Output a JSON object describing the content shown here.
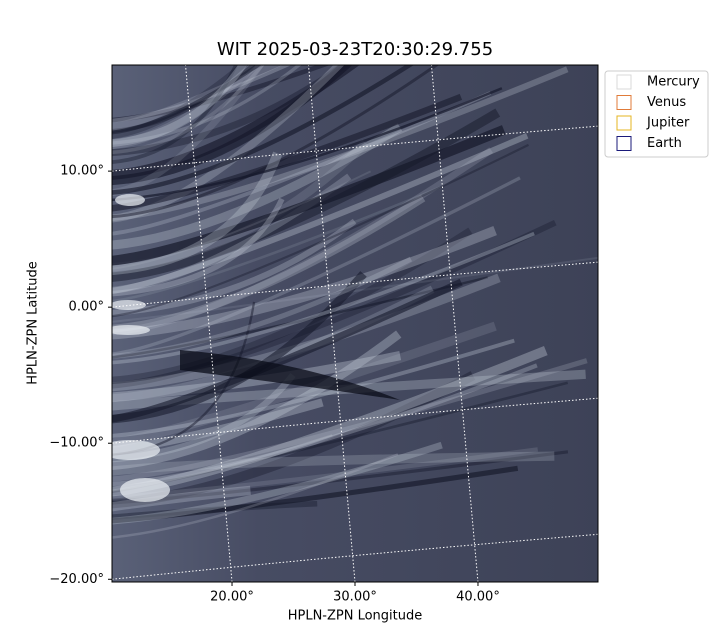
{
  "chart_data": {
    "type": "image",
    "title": "WIT 2025-03-23T20:30:29.755",
    "x_label": "HPLN-ZPN Longitude",
    "y_label": "HPLN-ZPN Latitude",
    "xlim": [
      10.24,
      49.76
    ],
    "ylim": [
      -20.2,
      17.8
    ],
    "xticks": [
      {
        "value": 20,
        "label": "20.00°"
      },
      {
        "value": 30,
        "label": "30.00°"
      },
      {
        "value": 40,
        "label": "40.00°"
      }
    ],
    "yticks": [
      {
        "value": -20,
        "label": "−20.00°"
      },
      {
        "value": -10,
        "label": "−10.00°"
      },
      {
        "value": 0,
        "label": "0.00°"
      },
      {
        "value": 10,
        "label": "10.00°"
      }
    ],
    "grid": true,
    "legend": "upper right",
    "series": [
      {
        "name": "Mercury",
        "color": "#d9d9d9"
      },
      {
        "name": "Venus",
        "color": "#e07b39"
      },
      {
        "name": "Jupiter",
        "color": "#e6b422"
      },
      {
        "name": "Earth",
        "color": "#1a1a7a"
      }
    ]
  }
}
